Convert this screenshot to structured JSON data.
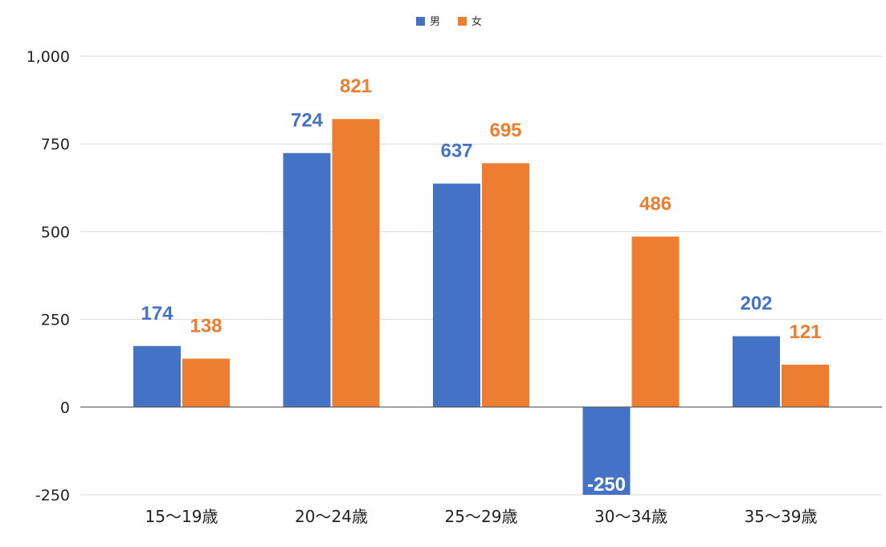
{
  "chart_data": {
    "type": "bar",
    "categories": [
      "15〜19歳",
      "20〜24歳",
      "25〜29歳",
      "30〜34歳",
      "35〜39歳"
    ],
    "series": [
      {
        "name": "男",
        "color": "#4472c4",
        "values": [
          174,
          724,
          637,
          -250,
          202
        ]
      },
      {
        "name": "女",
        "color": "#ed7d31",
        "values": [
          138,
          821,
          695,
          486,
          121
        ]
      }
    ],
    "yticks": [
      "1,000",
      "750",
      "500",
      "250",
      "0",
      "-250"
    ],
    "ytick_values": [
      1000,
      750,
      500,
      250,
      0,
      -250
    ],
    "ylim": [
      -250,
      1000
    ],
    "grid": true,
    "legend_position": "top-center",
    "data_labels": true
  }
}
